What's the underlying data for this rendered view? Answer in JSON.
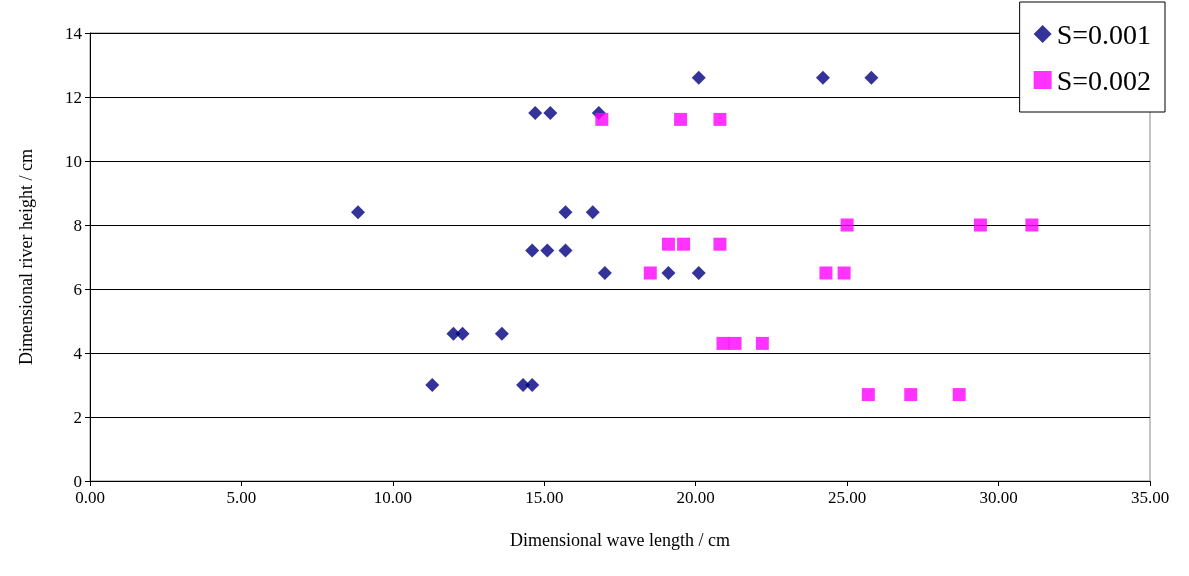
{
  "chart_data": {
    "type": "scatter",
    "xlabel": "Dimensional wave length / cm",
    "ylabel": "Dimensional river height / cm",
    "xlim": [
      0,
      35
    ],
    "ylim": [
      0,
      14
    ],
    "xticks": [
      {
        "value": 0,
        "label": "0.00"
      },
      {
        "value": 5,
        "label": "5.00"
      },
      {
        "value": 10,
        "label": "10.00"
      },
      {
        "value": 15,
        "label": "15.00"
      },
      {
        "value": 20,
        "label": "20.00"
      },
      {
        "value": 25,
        "label": "25.00"
      },
      {
        "value": 30,
        "label": "30.00"
      },
      {
        "value": 35,
        "label": "35.00"
      }
    ],
    "yticks": [
      0,
      2,
      4,
      6,
      8,
      10,
      12,
      14
    ],
    "grid": "y",
    "legend": "top right",
    "series": [
      {
        "name": "S=0.001",
        "color": "#000080",
        "marker": "diamond",
        "x": [
          8.85,
          11.3,
          12.0,
          12.3,
          13.6,
          14.3,
          14.6,
          14.6,
          15.1,
          15.7,
          14.7,
          15.2,
          16.8,
          15.7,
          16.6,
          17.0,
          19.1,
          20.1,
          20.1,
          24.2,
          25.8
        ],
        "values": [
          8.4,
          3.0,
          4.6,
          4.6,
          4.6,
          3.0,
          3.0,
          7.2,
          7.2,
          7.2,
          11.5,
          11.5,
          11.5,
          8.4,
          8.4,
          6.5,
          6.5,
          6.5,
          12.6,
          12.6,
          12.6
        ]
      },
      {
        "name": "S=0.002",
        "color": "#ff00ff",
        "marker": "square",
        "x": [
          16.9,
          19.5,
          20.8,
          18.5,
          19.1,
          19.6,
          20.8,
          20.9,
          21.3,
          22.2,
          24.3,
          24.9,
          25.0,
          25.7,
          27.1,
          28.7,
          29.4,
          31.1
        ],
        "values": [
          11.3,
          11.3,
          11.3,
          6.5,
          7.4,
          7.4,
          7.4,
          4.3,
          4.3,
          4.3,
          6.5,
          6.5,
          8.0,
          2.7,
          2.7,
          2.7,
          8.0,
          8.0
        ]
      }
    ]
  }
}
